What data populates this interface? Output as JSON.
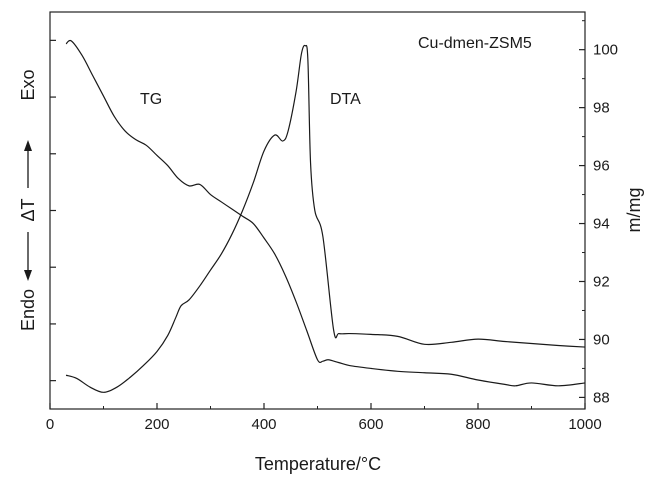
{
  "chart_data": {
    "type": "line",
    "title": "",
    "xlabel": "Temperature/°C",
    "ylabel_right": "m/mg",
    "ylabel_left": {
      "endo": "Endo",
      "delta_t": "ΔT",
      "exo": "Exo"
    },
    "xlim": [
      0,
      1000
    ],
    "xticks": [
      0,
      200,
      400,
      600,
      800,
      1000
    ],
    "ylim_right": [
      87.6,
      101.3
    ],
    "yticks_right": [
      88,
      90,
      92,
      94,
      96,
      98,
      100
    ],
    "ylim_left": [
      0,
      100
    ],
    "yticks_left_count": 7,
    "grid": false,
    "annotations": {
      "sample": "Cu-dmen-ZSM5",
      "tg": "TG",
      "dta": "DTA"
    },
    "series": [
      {
        "name": "TG",
        "axis": "right",
        "x": [
          30,
          40,
          60,
          80,
          100,
          120,
          140,
          160,
          180,
          200,
          220,
          240,
          260,
          280,
          300,
          320,
          340,
          360,
          380,
          400,
          420,
          440,
          460,
          480,
          500,
          510,
          520,
          540,
          560,
          600,
          650,
          700,
          750,
          800,
          850,
          870,
          900,
          950,
          1000
        ],
        "y": [
          100.2,
          100.3,
          99.8,
          99.1,
          98.4,
          97.7,
          97.2,
          96.9,
          96.7,
          96.35,
          96.0,
          95.55,
          95.3,
          95.35,
          95.0,
          94.75,
          94.5,
          94.25,
          94.0,
          93.5,
          92.95,
          92.2,
          91.3,
          90.3,
          89.3,
          89.25,
          89.3,
          89.2,
          89.1,
          89.0,
          88.9,
          88.85,
          88.8,
          88.6,
          88.45,
          88.4,
          88.5,
          88.4,
          88.5
        ]
      },
      {
        "name": "DTA",
        "axis": "left",
        "x": [
          30,
          50,
          75,
          100,
          125,
          150,
          175,
          200,
          220,
          235,
          245,
          260,
          280,
          300,
          320,
          340,
          360,
          380,
          400,
          420,
          435,
          445,
          460,
          470,
          477,
          482,
          487,
          495,
          510,
          530,
          540,
          560,
          600,
          650,
          700,
          750,
          800,
          850,
          900,
          950,
          1000
        ],
        "y": [
          8.5,
          7.7,
          5.5,
          4.2,
          5.5,
          8.0,
          11.0,
          14.5,
          18.5,
          23.0,
          26.0,
          27.5,
          31.0,
          35.0,
          39.0,
          44.0,
          50.0,
          57.0,
          65.0,
          69.0,
          67.5,
          70.0,
          80.0,
          89.5,
          91.5,
          88.0,
          62.0,
          50.0,
          43.5,
          20.0,
          19.0,
          19.0,
          18.8,
          18.3,
          16.3,
          16.8,
          17.6,
          17.0,
          16.5,
          16.0,
          15.6
        ]
      }
    ]
  }
}
